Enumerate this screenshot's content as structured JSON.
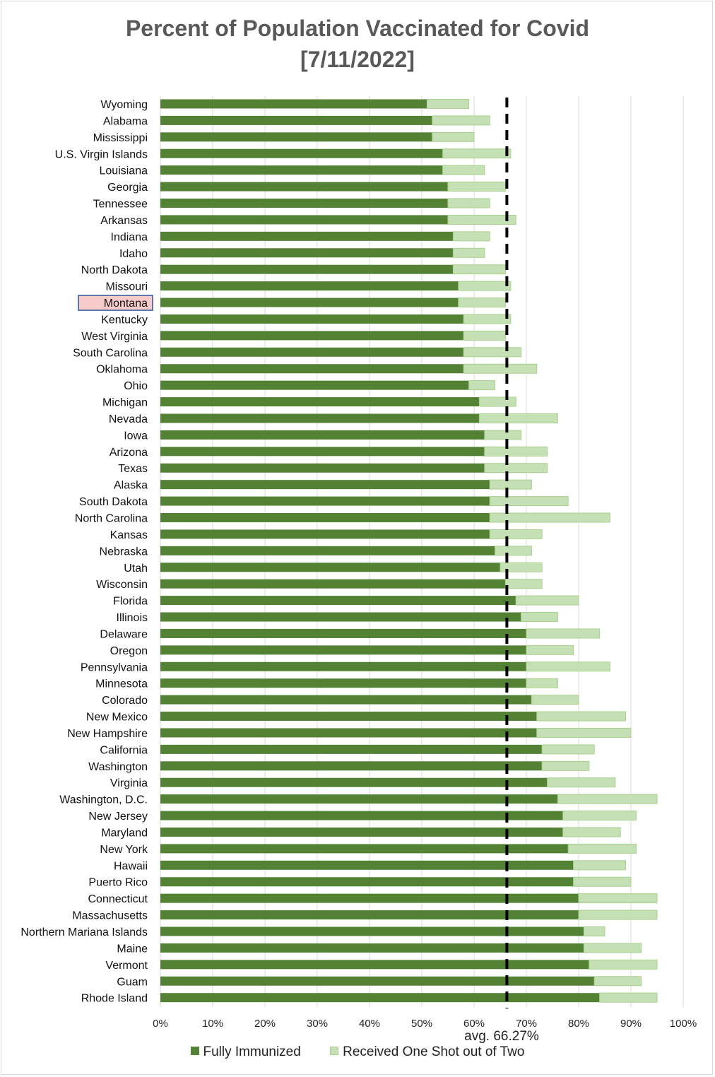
{
  "title_line1": "Percent of Population Vaccinated for Covid",
  "title_line2": "[7/11/2022]",
  "avg_label": "avg. 66.27%",
  "legend": {
    "full_label": "Fully Immunized",
    "one_label": "Received One Shot out of Two"
  },
  "colors": {
    "full": "#548235",
    "one": "#c5e0b4",
    "one_border": "#a9d18e",
    "highlight_fill": "#f8cbcb",
    "highlight_border": "#2f5597",
    "avg_line": "#000000",
    "grid": "#d9d9d9"
  },
  "chart_data": {
    "type": "bar",
    "orientation": "horizontal",
    "stacked": true,
    "title": "Percent of Population Vaccinated for Covid [7/11/2022]",
    "xlim": [
      0,
      100
    ],
    "x_ticks": [
      "0%",
      "10%",
      "20%",
      "30%",
      "40%",
      "50%",
      "60%",
      "70%",
      "80%",
      "90%",
      "100%"
    ],
    "grid": "vertical",
    "legend_position": "bottom",
    "average": 66.27,
    "highlighted_category": "Montana",
    "categories": [
      "Wyoming",
      "Alabama",
      "Mississippi",
      "U.S. Virgin Islands",
      "Louisiana",
      "Georgia",
      "Tennessee",
      "Arkansas",
      "Indiana",
      "Idaho",
      "North Dakota",
      "Missouri",
      "Montana",
      "Kentucky",
      "West Virginia",
      "South Carolina",
      "Oklahoma",
      "Ohio",
      "Michigan",
      "Nevada",
      "Iowa",
      "Arizona",
      "Texas",
      "Alaska",
      "South Dakota",
      "North Carolina",
      "Kansas",
      "Nebraska",
      "Utah",
      "Wisconsin",
      "Florida",
      "Illinois",
      "Delaware",
      "Oregon",
      "Pennsylvania",
      "Minnesota",
      "Colorado",
      "New Mexico",
      "New Hampshire",
      "California",
      "Washington",
      "Virginia",
      "Washington, D.C.",
      "New Jersey",
      "Maryland",
      "New York",
      "Hawaii",
      "Puerto Rico",
      "Connecticut",
      "Massachusetts",
      "Northern Mariana Islands",
      "Maine",
      "Vermont",
      "Guam",
      "Rhode Island"
    ],
    "series": [
      {
        "name": "Fully Immunized",
        "values": [
          51,
          52,
          52,
          54,
          54,
          55,
          55,
          55,
          56,
          56,
          56,
          57,
          57,
          58,
          58,
          58,
          58,
          59,
          61,
          61,
          62,
          62,
          62,
          63,
          63,
          63,
          63,
          64,
          65,
          66,
          68,
          69,
          70,
          70,
          70,
          70,
          71,
          72,
          72,
          73,
          73,
          74,
          76,
          77,
          77,
          78,
          79,
          79,
          80,
          80,
          81,
          81,
          82,
          83,
          84
        ]
      },
      {
        "name": "Received One Shot out of Two",
        "values": [
          8,
          11,
          8,
          13,
          8,
          11,
          8,
          13,
          7,
          6,
          10,
          10,
          9,
          9,
          8,
          11,
          14,
          5,
          7,
          15,
          7,
          12,
          12,
          8,
          15,
          23,
          10,
          7,
          8,
          7,
          12,
          7,
          14,
          9,
          16,
          6,
          9,
          17,
          18,
          10,
          9,
          13,
          19,
          14,
          11,
          13,
          10,
          11,
          15,
          15,
          4,
          11,
          13,
          9,
          11
        ]
      }
    ]
  }
}
